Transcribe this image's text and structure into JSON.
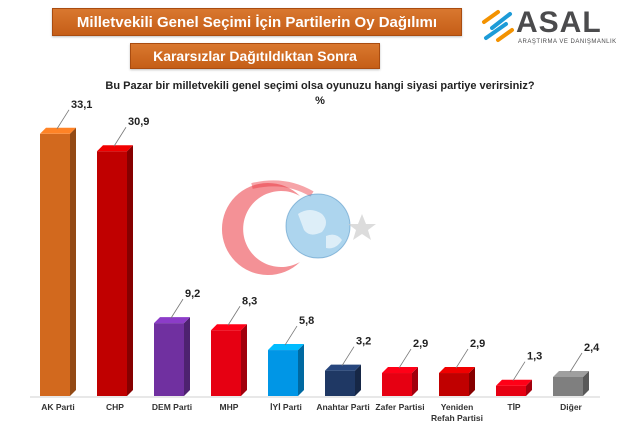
{
  "header": {
    "title": "Milletvekili Genel Seçimi İçin Partilerin Oy Dağılımı",
    "subtitle": "Kararsızlar Dağıtıldıktan Sonra"
  },
  "logo": {
    "name": "ASAL",
    "tagline": "ARAŞTIRMA VE DANIŞMANLIK"
  },
  "question": "Bu Pazar bir milletvekili genel seçimi olsa oyunuzu hangi siyasi partiye verirsiniz?",
  "unit": "%",
  "chart_data": {
    "type": "bar",
    "title": "Milletvekili Genel Seçimi İçin Partilerin Oy Dağılımı",
    "subtitle": "Kararsızlar Dağıtıldıktan Sonra",
    "xlabel": "",
    "ylabel": "",
    "ylim": [
      0,
      35
    ],
    "grid": false,
    "legend": "none",
    "categories": [
      "AK Parti",
      "CHP",
      "DEM Parti",
      "MHP",
      "İYİ Parti",
      "Anahtar Parti",
      "Zafer Partisi",
      "Yeniden Refah Partisi",
      "TİP",
      "Diğer"
    ],
    "category_lines": [
      [
        "AK Parti"
      ],
      [
        "CHP"
      ],
      [
        "DEM Parti"
      ],
      [
        "MHP"
      ],
      [
        "İYİ Parti"
      ],
      [
        "Anahtar Parti"
      ],
      [
        "Zafer Partisi"
      ],
      [
        "Yeniden",
        "Refah Partisi"
      ],
      [
        "TİP"
      ],
      [
        "Diğer"
      ]
    ],
    "values": [
      33.1,
      30.9,
      9.2,
      8.3,
      5.8,
      3.2,
      2.9,
      2.9,
      1.3,
      2.4
    ],
    "value_labels": [
      "33,1",
      "30,9",
      "9,2",
      "8,3",
      "5,8",
      "3,2",
      "2,9",
      "2,9",
      "1,3",
      "2,4"
    ],
    "colors": [
      "#d2691e",
      "#c00000",
      "#7030a0",
      "#e60012",
      "#0096e6",
      "#1f3864",
      "#e60012",
      "#c00000",
      "#e60012",
      "#7f7f7f"
    ]
  }
}
